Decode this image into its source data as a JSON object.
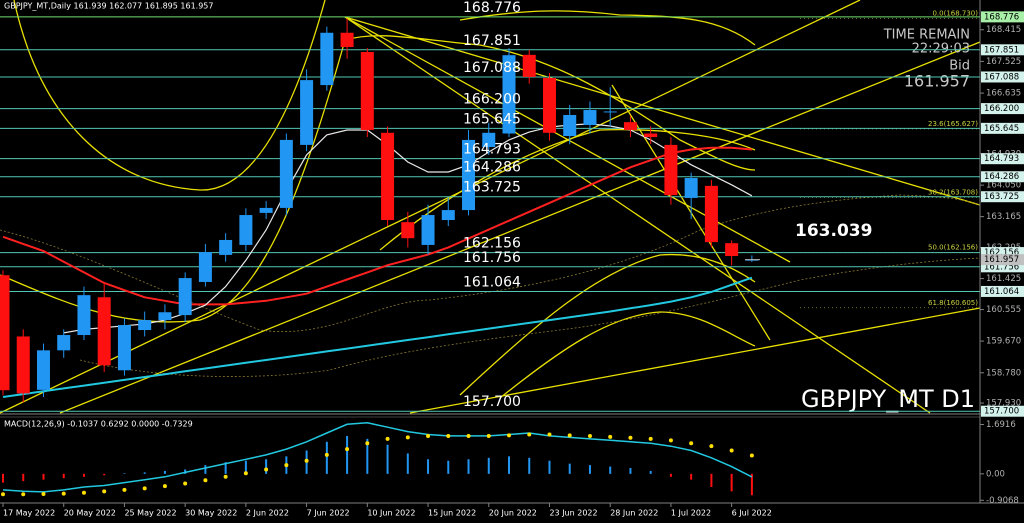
{
  "chart_data": [
    {
      "type": "candlestick",
      "title": "GBPJPY_MT,Daily  161.939 162.077 161.895 161.957",
      "x": [
        "17 May 2022",
        null,
        null,
        "20 May 2022",
        null,
        null,
        "25 May 2022",
        null,
        null,
        "30 May 2022",
        null,
        null,
        "2 Jun 2022",
        null,
        null,
        "7 Jun 2022",
        null,
        null,
        "10 Jun 2022",
        null,
        null,
        "15 Jun 2022",
        null,
        null,
        "20 Jun 2022",
        null,
        null,
        "23 Jun 2022",
        null,
        null,
        "28 Jun 2022",
        null,
        null,
        "1 Jul 2022",
        null,
        null,
        "6 Jul 2022",
        null
      ],
      "open": [
        161.52,
        159.8,
        158.3,
        159.41,
        159.84,
        160.9,
        158.85,
        159.98,
        160.26,
        160.4,
        161.33,
        162.09,
        162.37,
        163.27,
        163.41,
        165.18,
        166.86,
        168.33,
        167.79,
        165.52,
        163.01,
        162.37,
        163.07,
        163.35,
        165.12,
        165.5,
        167.71,
        167.06,
        165.43,
        165.74,
        166.11,
        165.82,
        165.5,
        165.18,
        163.69,
        164.03,
        162.42,
        161.939
      ],
      "high": [
        161.66,
        160.0,
        159.6,
        160.0,
        161.2,
        161.3,
        160.3,
        160.5,
        160.7,
        161.6,
        162.4,
        162.7,
        163.4,
        163.6,
        165.5,
        167.3,
        168.5,
        168.73,
        167.9,
        165.7,
        163.3,
        163.5,
        163.7,
        165.6,
        165.8,
        167.9,
        167.85,
        167.2,
        166.3,
        166.4,
        166.8,
        166.0,
        165.7,
        165.4,
        164.4,
        164.2,
        162.5,
        162.077
      ],
      "low": [
        158.15,
        157.95,
        158.1,
        159.2,
        159.7,
        158.8,
        158.7,
        159.8,
        160.0,
        160.2,
        161.2,
        161.9,
        162.2,
        163.1,
        163.2,
        165.0,
        166.7,
        167.6,
        165.4,
        162.9,
        162.3,
        162.1,
        162.9,
        163.2,
        164.9,
        165.4,
        166.9,
        165.3,
        165.2,
        165.5,
        165.7,
        165.4,
        165.2,
        163.5,
        163.1,
        162.3,
        161.8,
        161.895
      ],
      "close": [
        158.29,
        158.2,
        159.41,
        159.84,
        160.96,
        158.99,
        160.12,
        160.26,
        160.48,
        161.44,
        162.17,
        162.51,
        163.21,
        163.41,
        165.32,
        167.0,
        168.33,
        167.93,
        165.6,
        163.07,
        162.56,
        163.21,
        163.35,
        165.32,
        165.52,
        167.7,
        167.09,
        165.52,
        166.02,
        166.16,
        166.12,
        165.6,
        165.4,
        163.77,
        164.25,
        162.45,
        162.06,
        161.957
      ],
      "up_color": "#2196f3",
      "down_color": "#ff1010",
      "moving_averages": [
        {
          "color": "#ff2020",
          "values": [
            162.6,
            162.4,
            162.2,
            161.9,
            161.6,
            161.3,
            161.1,
            160.9,
            160.8,
            160.7,
            160.7,
            160.7,
            160.75,
            160.8,
            160.9,
            161.0,
            161.2,
            161.4,
            161.6,
            161.8,
            161.95,
            162.1,
            162.3,
            162.55,
            162.8,
            163.05,
            163.3,
            163.55,
            163.8,
            164.05,
            164.3,
            164.55,
            164.75,
            164.95,
            165.05,
            165.1,
            165.1,
            165.05
          ]
        },
        {
          "color": "#22c8e0",
          "values": [
            158.1,
            158.18,
            158.26,
            158.34,
            158.42,
            158.5,
            158.58,
            158.66,
            158.74,
            158.82,
            158.9,
            158.98,
            159.06,
            159.14,
            159.22,
            159.3,
            159.38,
            159.46,
            159.54,
            159.62,
            159.7,
            159.78,
            159.86,
            159.94,
            160.02,
            160.1,
            160.18,
            160.26,
            160.34,
            160.42,
            160.5,
            160.59,
            160.68,
            160.78,
            160.9,
            161.05,
            161.25,
            161.45
          ]
        },
        {
          "color": "#e8e8e8",
          "values": [
            null,
            null,
            null,
            159.9,
            160.0,
            160.05,
            160.1,
            160.15,
            160.26,
            160.45,
            160.68,
            161.2,
            161.94,
            162.79,
            163.9,
            164.9,
            165.46,
            165.6,
            165.6,
            165.18,
            164.7,
            164.42,
            164.42,
            164.62,
            164.98,
            165.32,
            165.54,
            165.68,
            165.74,
            165.77,
            165.71,
            165.6,
            165.32,
            164.98,
            164.62,
            164.34,
            164.06,
            163.75
          ]
        }
      ],
      "ylim": [
        157.65,
        169.25
      ],
      "yticks": [
        168.415,
        167.525,
        166.635,
        {
          "value": 164.93,
          "label": "164.930"
        },
        {
          "value": 164.05,
          "label": "164.050"
        },
        163.165,
        162.295,
        161.425,
        160.555,
        {
          "value": 159.67,
          "label": "159.670"
        },
        {
          "value": 158.78,
          "label": "158.780"
        },
        {
          "value": 157.93,
          "label": "157.930"
        }
      ],
      "levels": [
        168.776,
        167.851,
        167.088,
        {
          "value": 166.2,
          "label": "166.200"
        },
        165.645,
        164.793,
        164.286,
        163.725,
        162.156,
        161.756,
        161.064,
        {
          "value": 157.7,
          "label": "157.700"
        }
      ],
      "level_color": "#52c8b4",
      "fibonacci": [
        {
          "value": 168.73,
          "label": "0.0(168.730)"
        },
        {
          "value": 165.627,
          "label": "23.6(165.627)"
        },
        {
          "value": 163.708,
          "label": "38.2(163.708)"
        },
        {
          "value": 162.156,
          "label": "50.0(162.156)"
        },
        {
          "value": 160.605,
          "label": "61.8(160.605)"
        }
      ],
      "price_label": 163.039,
      "bid": 161.957,
      "time_remain_label": "TIME REMAIN",
      "time_remain": "22:29:03",
      "bid_label": "Bid",
      "watermark": "GBPJPY_MT D1"
    },
    {
      "type": "macd",
      "title": "MACD(12,26,9) -0.1037 0.6292 0.0000 -0.7329",
      "histogram": [
        -0.3,
        -0.25,
        -0.2,
        -0.15,
        -0.1,
        -0.05,
        0.02,
        0.05,
        0.1,
        0.15,
        0.3,
        0.4,
        0.45,
        0.5,
        0.6,
        0.8,
        1.1,
        1.3,
        1.2,
        1.0,
        0.7,
        0.5,
        0.45,
        0.5,
        0.55,
        0.6,
        0.55,
        0.45,
        0.35,
        0.3,
        0.25,
        0.2,
        0.1,
        -0.1,
        -0.2,
        -0.45,
        -0.6,
        -0.7329
      ],
      "main": [
        -0.55,
        -0.6,
        -0.62,
        -0.55,
        -0.45,
        -0.4,
        -0.3,
        -0.2,
        -0.1,
        0.05,
        0.2,
        0.35,
        0.5,
        0.65,
        0.85,
        1.1,
        1.4,
        1.7,
        1.75,
        1.6,
        1.45,
        1.35,
        1.3,
        1.3,
        1.3,
        1.35,
        1.4,
        1.3,
        1.25,
        1.2,
        1.15,
        1.1,
        1.05,
        0.95,
        0.8,
        0.55,
        0.25,
        -0.1037
      ],
      "signal": [
        -0.7,
        -0.7,
        -0.69,
        -0.68,
        -0.65,
        -0.6,
        -0.55,
        -0.5,
        -0.42,
        -0.33,
        -0.22,
        -0.1,
        0.02,
        0.15,
        0.3,
        0.45,
        0.65,
        0.85,
        1.05,
        1.2,
        1.25,
        1.3,
        1.3,
        1.3,
        1.3,
        1.32,
        1.35,
        1.35,
        1.32,
        1.3,
        1.27,
        1.24,
        1.2,
        1.15,
        1.05,
        0.95,
        0.8,
        0.6292
      ],
      "up_color": "#2196f3",
      "down_color": "#ff1010",
      "main_color": "#22c8e0",
      "signal_color": "#ffe000",
      "ylim": [
        -1.0,
        1.95
      ],
      "yticks": [
        1.6916,
        {
          "value": 0,
          "label": "0.00"
        },
        -0.9068
      ]
    }
  ]
}
